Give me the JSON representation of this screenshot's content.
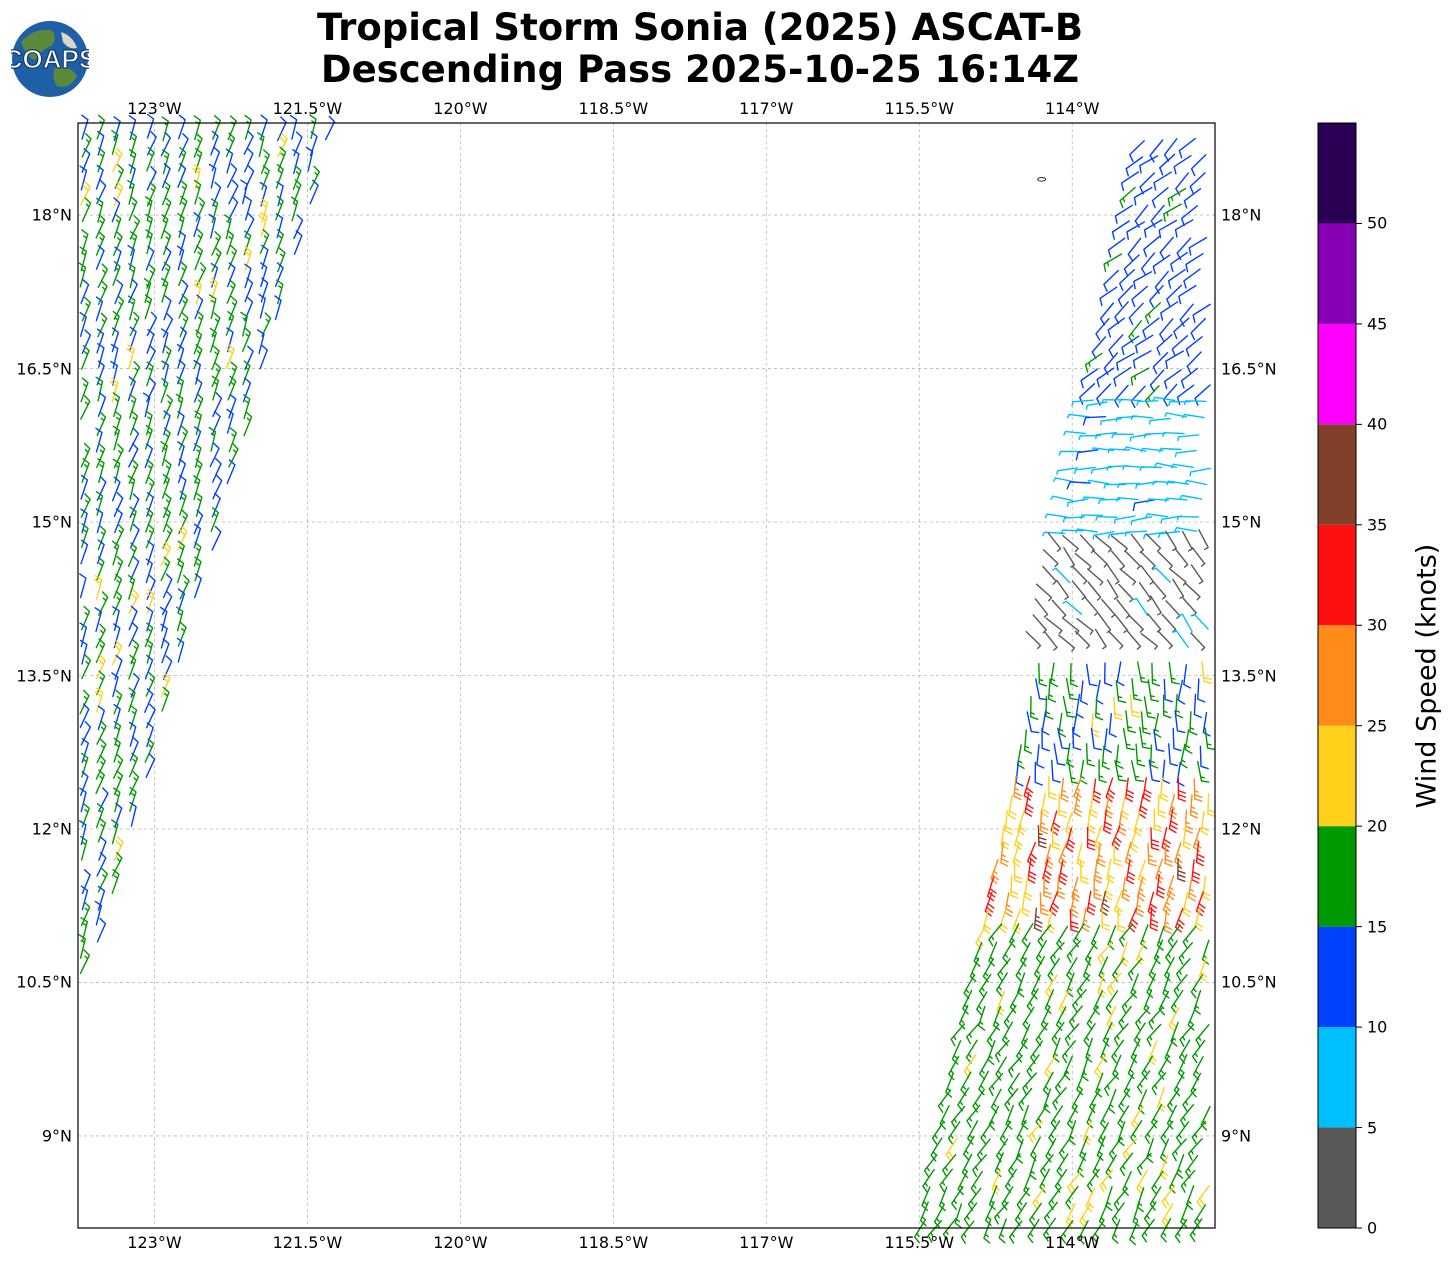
{
  "title": {
    "line1": "Tropical Storm Sonia (2025) ASCAT-B",
    "line2": "Descending Pass 2025-10-25 16:14Z"
  },
  "logo": {
    "text": "COAPS",
    "icon": "globe-icon",
    "ocean_color": "#1f5fa8",
    "land_color": "#5a8a3a"
  },
  "map": {
    "projection": "PlateCarree",
    "lon_range": [
      -123.75,
      -112.6
    ],
    "lat_range": [
      8.1,
      18.9
    ],
    "grid": true,
    "lon_ticks": [
      {
        "value": -123,
        "label": "123°W"
      },
      {
        "value": -121.5,
        "label": "121.5°W"
      },
      {
        "value": -120,
        "label": "120°W"
      },
      {
        "value": -118.5,
        "label": "118.5°W"
      },
      {
        "value": -117,
        "label": "117°W"
      },
      {
        "value": -115.5,
        "label": "115.5°W"
      },
      {
        "value": -114,
        "label": "114°W"
      }
    ],
    "lat_ticks": [
      {
        "value": 18,
        "label": "18°N"
      },
      {
        "value": 16.5,
        "label": "16.5°N"
      },
      {
        "value": 15,
        "label": "15°N"
      },
      {
        "value": 13.5,
        "label": "13.5°N"
      },
      {
        "value": 12,
        "label": "12°N"
      },
      {
        "value": 10.5,
        "label": "10.5°N"
      },
      {
        "value": 9,
        "label": "9°N"
      }
    ],
    "island": {
      "lon": -114.3,
      "lat": 18.35
    }
  },
  "colorbar": {
    "label": "Wind Speed (knots)",
    "ticks": [
      "0",
      "5",
      "10",
      "15",
      "20",
      "25",
      "30",
      "35",
      "40",
      "45",
      "50"
    ],
    "bins": [
      {
        "min": 0,
        "max": 5,
        "color": "#595959"
      },
      {
        "min": 5,
        "max": 10,
        "color": "#00bfff"
      },
      {
        "min": 10,
        "max": 15,
        "color": "#0040ff"
      },
      {
        "min": 15,
        "max": 20,
        "color": "#009900"
      },
      {
        "min": 20,
        "max": 25,
        "color": "#ffd11a"
      },
      {
        "min": 25,
        "max": 30,
        "color": "#ff8c1a"
      },
      {
        "min": 30,
        "max": 35,
        "color": "#ff1010"
      },
      {
        "min": 35,
        "max": 40,
        "color": "#80402a"
      },
      {
        "min": 40,
        "max": 45,
        "color": "#ff00ff"
      },
      {
        "min": 45,
        "max": 50,
        "color": "#8800b3"
      },
      {
        "min": 50,
        "max": 55,
        "color": "#2a0055"
      }
    ]
  },
  "chart_data": {
    "type": "wind_barbs",
    "units": "knots",
    "swaths": [
      {
        "side": "west",
        "lat_range": [
          10.5,
          18.9
        ],
        "dominant_speed_kt": [
          10,
          20
        ],
        "direction_deg_from": 20
      },
      {
        "side": "east",
        "lat_range": [
          8.1,
          18.9
        ],
        "regions": [
          {
            "lat_range": [
              16.2,
              18.9
            ],
            "speed_kt": [
              10,
              15
            ],
            "direction_deg_from": 230
          },
          {
            "lat_range": [
              14.8,
              16.2
            ],
            "speed_kt": [
              5,
              10
            ],
            "direction_deg_from": 270
          },
          {
            "lat_range": [
              13.7,
              14.8
            ],
            "speed_kt": [
              0,
              5
            ],
            "direction_deg_from": 320
          },
          {
            "lat_range": [
              12.5,
              13.7
            ],
            "speed_kt": [
              10,
              20
            ],
            "direction_deg_from": 180
          },
          {
            "lat_range": [
              11.2,
              12.5
            ],
            "speed_kt": [
              20,
              35
            ],
            "direction_deg_from": 190
          },
          {
            "lat_range": [
              8.1,
              11.2
            ],
            "speed_kt": [
              15,
              20
            ],
            "direction_deg_from": 210
          }
        ]
      }
    ]
  }
}
